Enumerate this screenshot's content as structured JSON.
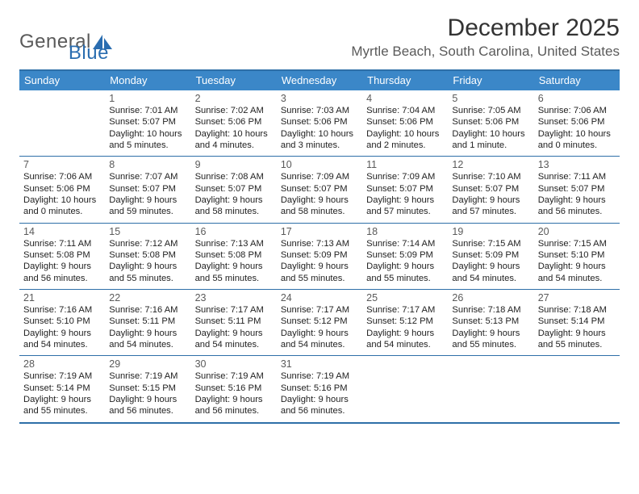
{
  "logo": {
    "word1": "General",
    "word2": "Blue"
  },
  "title": "December 2025",
  "location": "Myrtle Beach, South Carolina, United States",
  "colors": {
    "header_bg": "#3b87c8",
    "rule": "#2e6fa8",
    "logo_gray": "#5a5a5a",
    "logo_blue": "#2a6db0"
  },
  "dayNames": [
    "Sunday",
    "Monday",
    "Tuesday",
    "Wednesday",
    "Thursday",
    "Friday",
    "Saturday"
  ],
  "weeks": [
    [
      null,
      {
        "n": "1",
        "sr": "Sunrise: 7:01 AM",
        "ss": "Sunset: 5:07 PM",
        "d1": "Daylight: 10 hours",
        "d2": "and 5 minutes."
      },
      {
        "n": "2",
        "sr": "Sunrise: 7:02 AM",
        "ss": "Sunset: 5:06 PM",
        "d1": "Daylight: 10 hours",
        "d2": "and 4 minutes."
      },
      {
        "n": "3",
        "sr": "Sunrise: 7:03 AM",
        "ss": "Sunset: 5:06 PM",
        "d1": "Daylight: 10 hours",
        "d2": "and 3 minutes."
      },
      {
        "n": "4",
        "sr": "Sunrise: 7:04 AM",
        "ss": "Sunset: 5:06 PM",
        "d1": "Daylight: 10 hours",
        "d2": "and 2 minutes."
      },
      {
        "n": "5",
        "sr": "Sunrise: 7:05 AM",
        "ss": "Sunset: 5:06 PM",
        "d1": "Daylight: 10 hours",
        "d2": "and 1 minute."
      },
      {
        "n": "6",
        "sr": "Sunrise: 7:06 AM",
        "ss": "Sunset: 5:06 PM",
        "d1": "Daylight: 10 hours",
        "d2": "and 0 minutes."
      }
    ],
    [
      {
        "n": "7",
        "sr": "Sunrise: 7:06 AM",
        "ss": "Sunset: 5:06 PM",
        "d1": "Daylight: 10 hours",
        "d2": "and 0 minutes."
      },
      {
        "n": "8",
        "sr": "Sunrise: 7:07 AM",
        "ss": "Sunset: 5:07 PM",
        "d1": "Daylight: 9 hours",
        "d2": "and 59 minutes."
      },
      {
        "n": "9",
        "sr": "Sunrise: 7:08 AM",
        "ss": "Sunset: 5:07 PM",
        "d1": "Daylight: 9 hours",
        "d2": "and 58 minutes."
      },
      {
        "n": "10",
        "sr": "Sunrise: 7:09 AM",
        "ss": "Sunset: 5:07 PM",
        "d1": "Daylight: 9 hours",
        "d2": "and 58 minutes."
      },
      {
        "n": "11",
        "sr": "Sunrise: 7:09 AM",
        "ss": "Sunset: 5:07 PM",
        "d1": "Daylight: 9 hours",
        "d2": "and 57 minutes."
      },
      {
        "n": "12",
        "sr": "Sunrise: 7:10 AM",
        "ss": "Sunset: 5:07 PM",
        "d1": "Daylight: 9 hours",
        "d2": "and 57 minutes."
      },
      {
        "n": "13",
        "sr": "Sunrise: 7:11 AM",
        "ss": "Sunset: 5:07 PM",
        "d1": "Daylight: 9 hours",
        "d2": "and 56 minutes."
      }
    ],
    [
      {
        "n": "14",
        "sr": "Sunrise: 7:11 AM",
        "ss": "Sunset: 5:08 PM",
        "d1": "Daylight: 9 hours",
        "d2": "and 56 minutes."
      },
      {
        "n": "15",
        "sr": "Sunrise: 7:12 AM",
        "ss": "Sunset: 5:08 PM",
        "d1": "Daylight: 9 hours",
        "d2": "and 55 minutes."
      },
      {
        "n": "16",
        "sr": "Sunrise: 7:13 AM",
        "ss": "Sunset: 5:08 PM",
        "d1": "Daylight: 9 hours",
        "d2": "and 55 minutes."
      },
      {
        "n": "17",
        "sr": "Sunrise: 7:13 AM",
        "ss": "Sunset: 5:09 PM",
        "d1": "Daylight: 9 hours",
        "d2": "and 55 minutes."
      },
      {
        "n": "18",
        "sr": "Sunrise: 7:14 AM",
        "ss": "Sunset: 5:09 PM",
        "d1": "Daylight: 9 hours",
        "d2": "and 55 minutes."
      },
      {
        "n": "19",
        "sr": "Sunrise: 7:15 AM",
        "ss": "Sunset: 5:09 PM",
        "d1": "Daylight: 9 hours",
        "d2": "and 54 minutes."
      },
      {
        "n": "20",
        "sr": "Sunrise: 7:15 AM",
        "ss": "Sunset: 5:10 PM",
        "d1": "Daylight: 9 hours",
        "d2": "and 54 minutes."
      }
    ],
    [
      {
        "n": "21",
        "sr": "Sunrise: 7:16 AM",
        "ss": "Sunset: 5:10 PM",
        "d1": "Daylight: 9 hours",
        "d2": "and 54 minutes."
      },
      {
        "n": "22",
        "sr": "Sunrise: 7:16 AM",
        "ss": "Sunset: 5:11 PM",
        "d1": "Daylight: 9 hours",
        "d2": "and 54 minutes."
      },
      {
        "n": "23",
        "sr": "Sunrise: 7:17 AM",
        "ss": "Sunset: 5:11 PM",
        "d1": "Daylight: 9 hours",
        "d2": "and 54 minutes."
      },
      {
        "n": "24",
        "sr": "Sunrise: 7:17 AM",
        "ss": "Sunset: 5:12 PM",
        "d1": "Daylight: 9 hours",
        "d2": "and 54 minutes."
      },
      {
        "n": "25",
        "sr": "Sunrise: 7:17 AM",
        "ss": "Sunset: 5:12 PM",
        "d1": "Daylight: 9 hours",
        "d2": "and 54 minutes."
      },
      {
        "n": "26",
        "sr": "Sunrise: 7:18 AM",
        "ss": "Sunset: 5:13 PM",
        "d1": "Daylight: 9 hours",
        "d2": "and 55 minutes."
      },
      {
        "n": "27",
        "sr": "Sunrise: 7:18 AM",
        "ss": "Sunset: 5:14 PM",
        "d1": "Daylight: 9 hours",
        "d2": "and 55 minutes."
      }
    ],
    [
      {
        "n": "28",
        "sr": "Sunrise: 7:19 AM",
        "ss": "Sunset: 5:14 PM",
        "d1": "Daylight: 9 hours",
        "d2": "and 55 minutes."
      },
      {
        "n": "29",
        "sr": "Sunrise: 7:19 AM",
        "ss": "Sunset: 5:15 PM",
        "d1": "Daylight: 9 hours",
        "d2": "and 56 minutes."
      },
      {
        "n": "30",
        "sr": "Sunrise: 7:19 AM",
        "ss": "Sunset: 5:16 PM",
        "d1": "Daylight: 9 hours",
        "d2": "and 56 minutes."
      },
      {
        "n": "31",
        "sr": "Sunrise: 7:19 AM",
        "ss": "Sunset: 5:16 PM",
        "d1": "Daylight: 9 hours",
        "d2": "and 56 minutes."
      },
      null,
      null,
      null
    ]
  ]
}
